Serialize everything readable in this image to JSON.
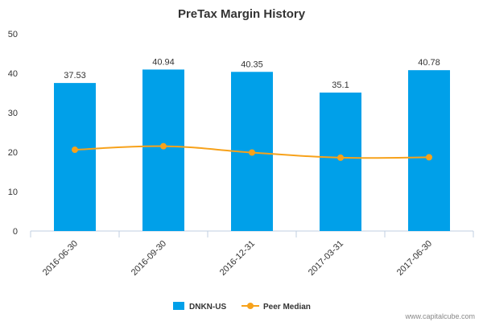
{
  "chart_data": {
    "type": "bar",
    "title": "PreTax Margin History",
    "categories": [
      "2016-06-30",
      "2016-09-30",
      "2016-12-31",
      "2017-03-31",
      "2017-06-30"
    ],
    "series": [
      {
        "name": "DNKN-US",
        "kind": "bar",
        "color": "#00a0e9",
        "values": [
          37.53,
          40.94,
          40.35,
          35.1,
          40.78
        ],
        "labels": [
          "37.53",
          "40.94",
          "40.35",
          "35.1",
          "40.78"
        ]
      },
      {
        "name": "Peer Median",
        "kind": "line",
        "color": "#f7a21b",
        "values": [
          20.6,
          21.5,
          19.9,
          18.6,
          18.7
        ]
      }
    ],
    "ylim": [
      0,
      50
    ],
    "yticks": [
      "0",
      "10",
      "20",
      "30",
      "40",
      "50"
    ],
    "xlabel": "",
    "ylabel": "",
    "grid": false,
    "legend_position": "bottom-center"
  },
  "watermark": "www.capitalcube.com"
}
